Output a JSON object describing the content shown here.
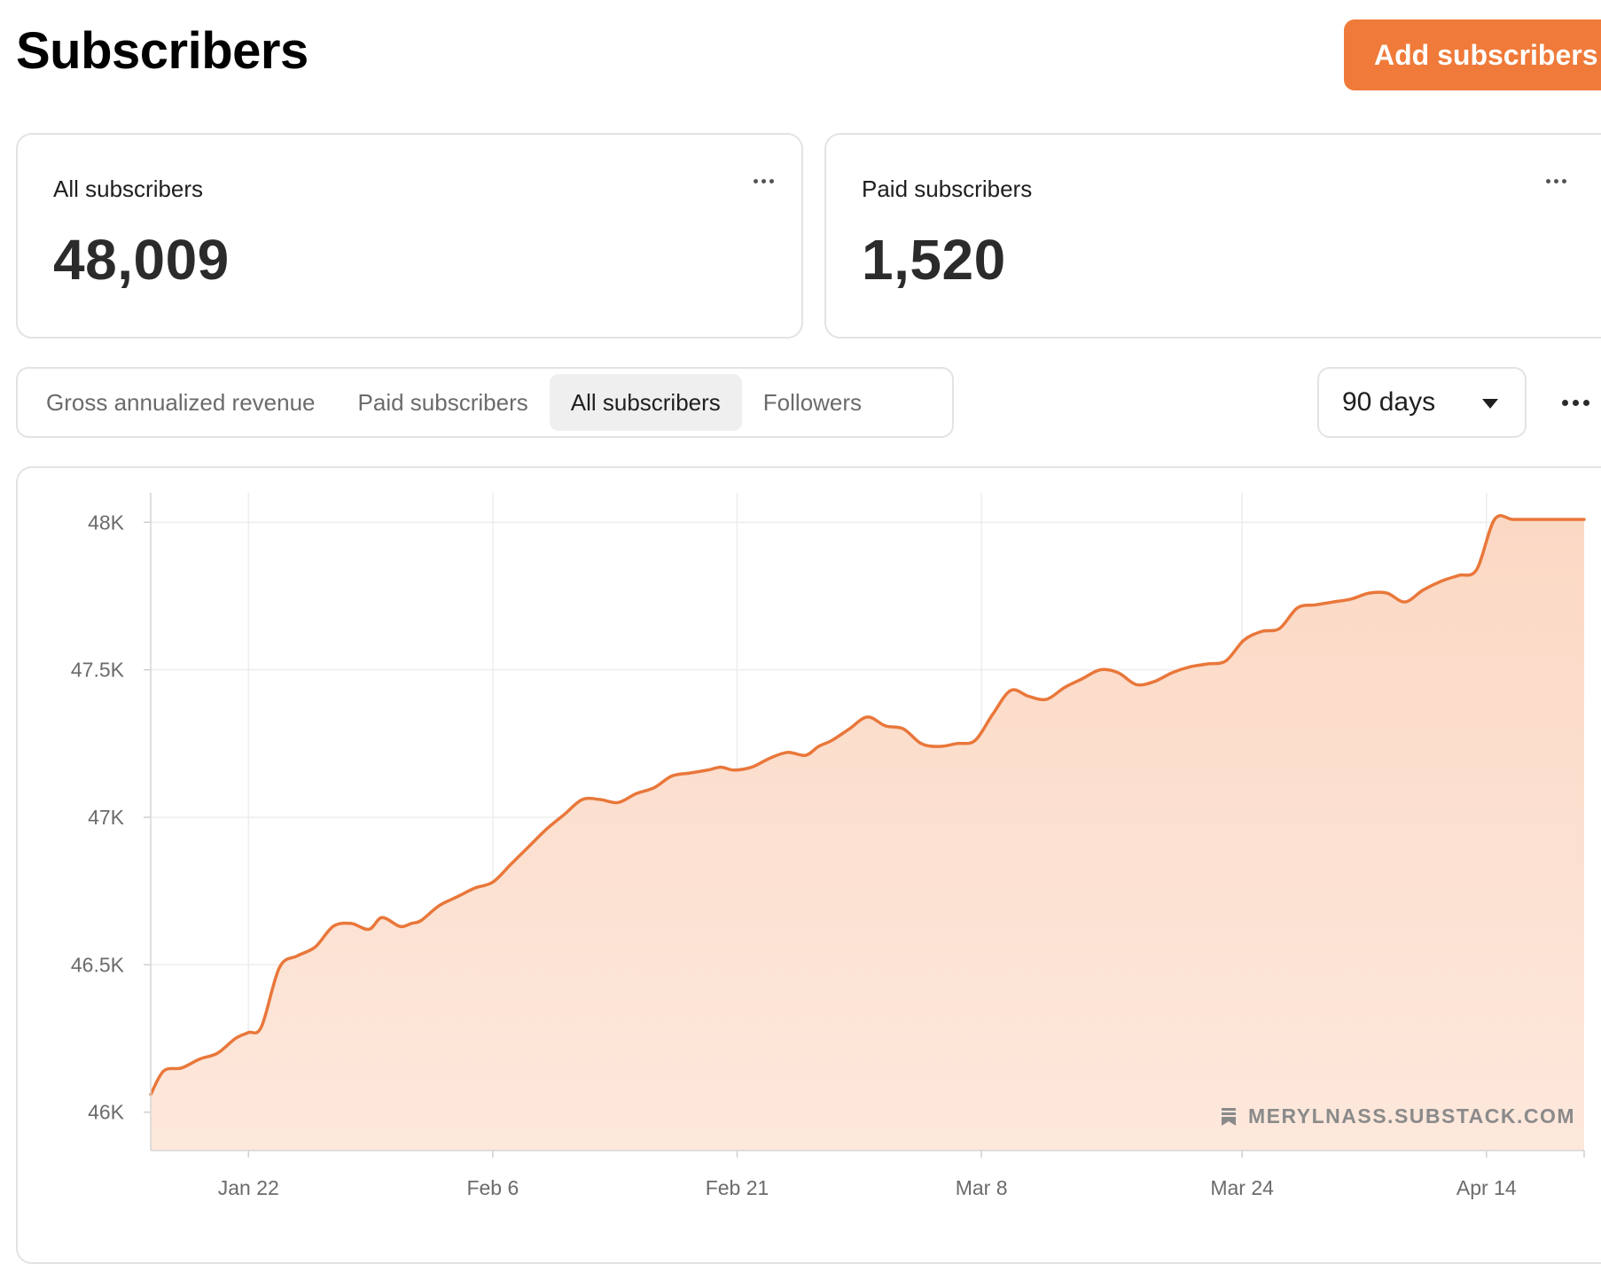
{
  "header": {
    "title": "Subscribers",
    "add_button_label": "Add subscribers"
  },
  "cards": [
    {
      "label": "All subscribers",
      "value": "48,009"
    },
    {
      "label": "Paid subscribers",
      "value": "1,520"
    }
  ],
  "tabs": [
    {
      "label": "Gross annualized revenue",
      "active": false
    },
    {
      "label": "Paid subscribers",
      "active": false
    },
    {
      "label": "All subscribers",
      "active": true
    },
    {
      "label": "Followers",
      "active": false
    }
  ],
  "range": {
    "selected": "90 days"
  },
  "watermark": "MERYLNASS.SUBSTACK.COM",
  "colors": {
    "accent": "#ef7a39",
    "line": "#e9773a",
    "area": "#fbdccb"
  },
  "chart_data": {
    "type": "area",
    "ylim": [
      45870,
      48100
    ],
    "yticks": [
      {
        "value": 46000,
        "label": "46K"
      },
      {
        "value": 46500,
        "label": "46.5K"
      },
      {
        "value": 47000,
        "label": "47K"
      },
      {
        "value": 47500,
        "label": "47.5K"
      },
      {
        "value": 48000,
        "label": "48K"
      }
    ],
    "xlim": [
      0,
      88
    ],
    "xticks": [
      {
        "x": 6,
        "label": "Jan 22"
      },
      {
        "x": 21,
        "label": "Feb 6"
      },
      {
        "x": 36,
        "label": "Feb 21"
      },
      {
        "x": 51,
        "label": "Mar 8"
      },
      {
        "x": 67,
        "label": "Mar 24"
      },
      {
        "x": 82,
        "label": "Apr 14"
      }
    ],
    "grid": true,
    "series": [
      {
        "x": [
          0,
          0.8,
          1.9,
          3,
          4.1,
          5.2,
          6,
          6.8,
          7.9,
          9,
          10.1,
          11.2,
          12.3,
          13.4,
          14.2,
          15.3,
          16,
          16.6,
          17.7,
          18.8,
          19.9,
          21,
          22.1,
          23.2,
          24.3,
          25.4,
          26.5,
          27.6,
          28.7,
          29.8,
          30.9,
          32,
          33.1,
          34.2,
          35,
          35.8,
          36.9,
          38,
          39.1,
          40.2,
          41,
          41.8,
          42.9,
          44,
          45.1,
          46.2,
          47.3,
          48.4,
          49.5,
          50.6,
          51.7,
          52.8,
          53.9,
          55,
          56.1,
          57.2,
          58.3,
          59.4,
          60.5,
          61.6,
          62.7,
          63.8,
          64.9,
          66,
          67.1,
          68.2,
          69.3,
          70.4,
          71.5,
          72.6,
          73.7,
          74.8,
          75.9,
          77,
          78.1,
          79.2,
          80.3,
          81.4,
          82.5,
          83.6,
          84.7,
          85.8,
          86.9,
          88
        ],
        "y": [
          46060,
          46140,
          46150,
          46180,
          46200,
          46250,
          46270,
          46290,
          46490,
          46530,
          46560,
          46630,
          46640,
          46620,
          46660,
          46630,
          46640,
          46650,
          46700,
          46730,
          46760,
          46780,
          46840,
          46900,
          46960,
          47010,
          47060,
          47060,
          47050,
          47080,
          47100,
          47140,
          47150,
          47160,
          47170,
          47160,
          47170,
          47200,
          47220,
          47210,
          47240,
          47260,
          47300,
          47340,
          47310,
          47300,
          47250,
          47240,
          47250,
          47260,
          47350,
          47430,
          47410,
          47400,
          47440,
          47470,
          47500,
          47490,
          47450,
          47460,
          47490,
          47510,
          47520,
          47530,
          47600,
          47630,
          47640,
          47710,
          47720,
          47730,
          47740,
          47760,
          47760,
          47730,
          47770,
          47800,
          47820,
          47840,
          48010,
          48010,
          48010,
          48010,
          48010,
          48010
        ]
      }
    ]
  }
}
